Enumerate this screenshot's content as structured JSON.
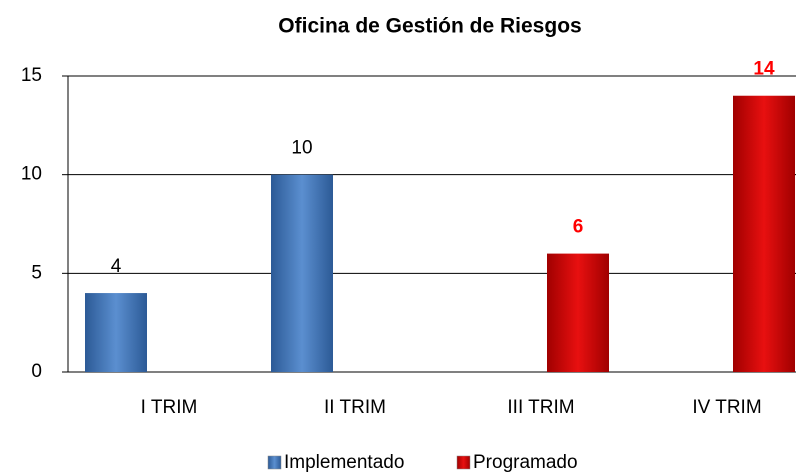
{
  "chart_data": {
    "type": "bar",
    "title": "Oficina de Gestión de Riesgos",
    "categories": [
      "I TRIM",
      "II TRIM",
      "III TRIM",
      "IV TRIM"
    ],
    "series": [
      {
        "name": "Implementado",
        "color": "#4f81bd",
        "label_color": "#000000",
        "values": [
          4,
          10,
          null,
          null
        ]
      },
      {
        "name": "Programado",
        "color": "#d40000",
        "label_color": "#ff0000",
        "values": [
          null,
          null,
          6,
          14
        ]
      }
    ],
    "ylim": [
      0,
      15
    ],
    "yticks": [
      0,
      5,
      10,
      15
    ],
    "grid": true,
    "legend": "bottom"
  }
}
